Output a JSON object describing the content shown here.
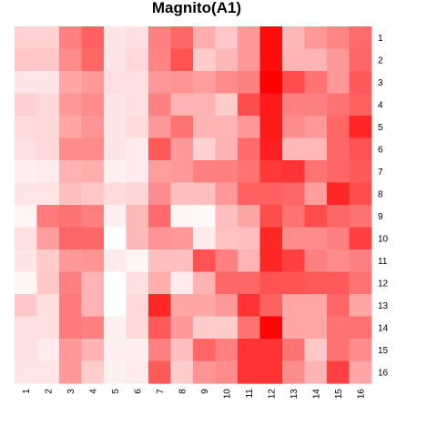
{
  "chart_data": {
    "type": "heatmap",
    "title": "Magnito(A1)",
    "row_labels": [
      "1",
      "2",
      "3",
      "4",
      "5",
      "6",
      "7",
      "8",
      "9",
      "10",
      "11",
      "12",
      "13",
      "14",
      "15",
      "16"
    ],
    "col_labels": [
      "1",
      "2",
      "3",
      "4",
      "5",
      "6",
      "7",
      "8",
      "9",
      "10",
      "11",
      "12",
      "13",
      "14",
      "15",
      "16"
    ],
    "value_range": [
      0,
      1
    ],
    "color_low": "#ffffff",
    "color_high": "#ff0000",
    "values": [
      [
        0.18,
        0.18,
        0.5,
        0.62,
        0.1,
        0.12,
        0.5,
        0.6,
        0.32,
        0.22,
        0.4,
        0.95,
        0.28,
        0.4,
        0.48,
        0.58
      ],
      [
        0.22,
        0.22,
        0.45,
        0.6,
        0.1,
        0.15,
        0.48,
        0.68,
        0.2,
        0.28,
        0.4,
        0.95,
        0.3,
        0.3,
        0.4,
        0.6
      ],
      [
        0.1,
        0.1,
        0.35,
        0.4,
        0.12,
        0.12,
        0.4,
        0.42,
        0.38,
        0.45,
        0.5,
        1.0,
        0.7,
        0.55,
        0.4,
        0.65
      ],
      [
        0.18,
        0.15,
        0.4,
        0.45,
        0.1,
        0.12,
        0.5,
        0.3,
        0.3,
        0.2,
        0.7,
        0.9,
        0.5,
        0.5,
        0.55,
        0.62
      ],
      [
        0.14,
        0.15,
        0.35,
        0.42,
        0.1,
        0.14,
        0.4,
        0.55,
        0.3,
        0.3,
        0.4,
        0.9,
        0.45,
        0.4,
        0.6,
        0.85
      ],
      [
        0.12,
        0.15,
        0.45,
        0.45,
        0.1,
        0.08,
        0.65,
        0.4,
        0.18,
        0.3,
        0.58,
        0.88,
        0.28,
        0.28,
        0.6,
        0.68
      ],
      [
        0.06,
        0.08,
        0.3,
        0.32,
        0.06,
        0.08,
        0.38,
        0.4,
        0.5,
        0.5,
        0.55,
        0.78,
        0.8,
        0.55,
        0.6,
        0.65
      ],
      [
        0.1,
        0.1,
        0.25,
        0.22,
        0.14,
        0.16,
        0.45,
        0.25,
        0.25,
        0.4,
        0.62,
        0.62,
        0.6,
        0.38,
        0.85,
        0.7
      ],
      [
        0.04,
        0.52,
        0.55,
        0.5,
        0.06,
        0.28,
        0.58,
        0.04,
        0.02,
        0.25,
        0.35,
        0.7,
        0.55,
        0.7,
        0.6,
        0.55
      ],
      [
        0.12,
        0.38,
        0.6,
        0.6,
        0.0,
        0.28,
        0.42,
        0.4,
        0.08,
        0.24,
        0.25,
        0.85,
        0.45,
        0.45,
        0.5,
        0.75
      ],
      [
        0.1,
        0.2,
        0.4,
        0.42,
        0.08,
        0.04,
        0.25,
        0.25,
        0.68,
        0.5,
        0.3,
        0.85,
        0.75,
        0.5,
        0.45,
        0.5
      ],
      [
        0.04,
        0.22,
        0.5,
        0.3,
        0.0,
        0.12,
        0.32,
        0.08,
        0.3,
        0.6,
        0.6,
        0.68,
        0.68,
        0.65,
        0.65,
        0.55
      ],
      [
        0.22,
        0.12,
        0.52,
        0.3,
        0.0,
        0.15,
        0.85,
        0.35,
        0.35,
        0.4,
        0.8,
        0.62,
        0.35,
        0.35,
        0.6,
        0.35
      ],
      [
        0.12,
        0.12,
        0.52,
        0.5,
        0.06,
        0.15,
        0.65,
        0.4,
        0.2,
        0.2,
        0.55,
        0.98,
        0.35,
        0.35,
        0.55,
        0.55
      ],
      [
        0.12,
        0.08,
        0.4,
        0.3,
        0.06,
        0.06,
        0.5,
        0.25,
        0.6,
        0.5,
        0.8,
        0.8,
        0.55,
        0.22,
        0.55,
        0.45
      ],
      [
        0.1,
        0.1,
        0.4,
        0.2,
        0.06,
        0.08,
        0.65,
        0.2,
        0.42,
        0.45,
        0.8,
        0.8,
        0.45,
        0.3,
        0.75,
        0.35
      ]
    ]
  }
}
